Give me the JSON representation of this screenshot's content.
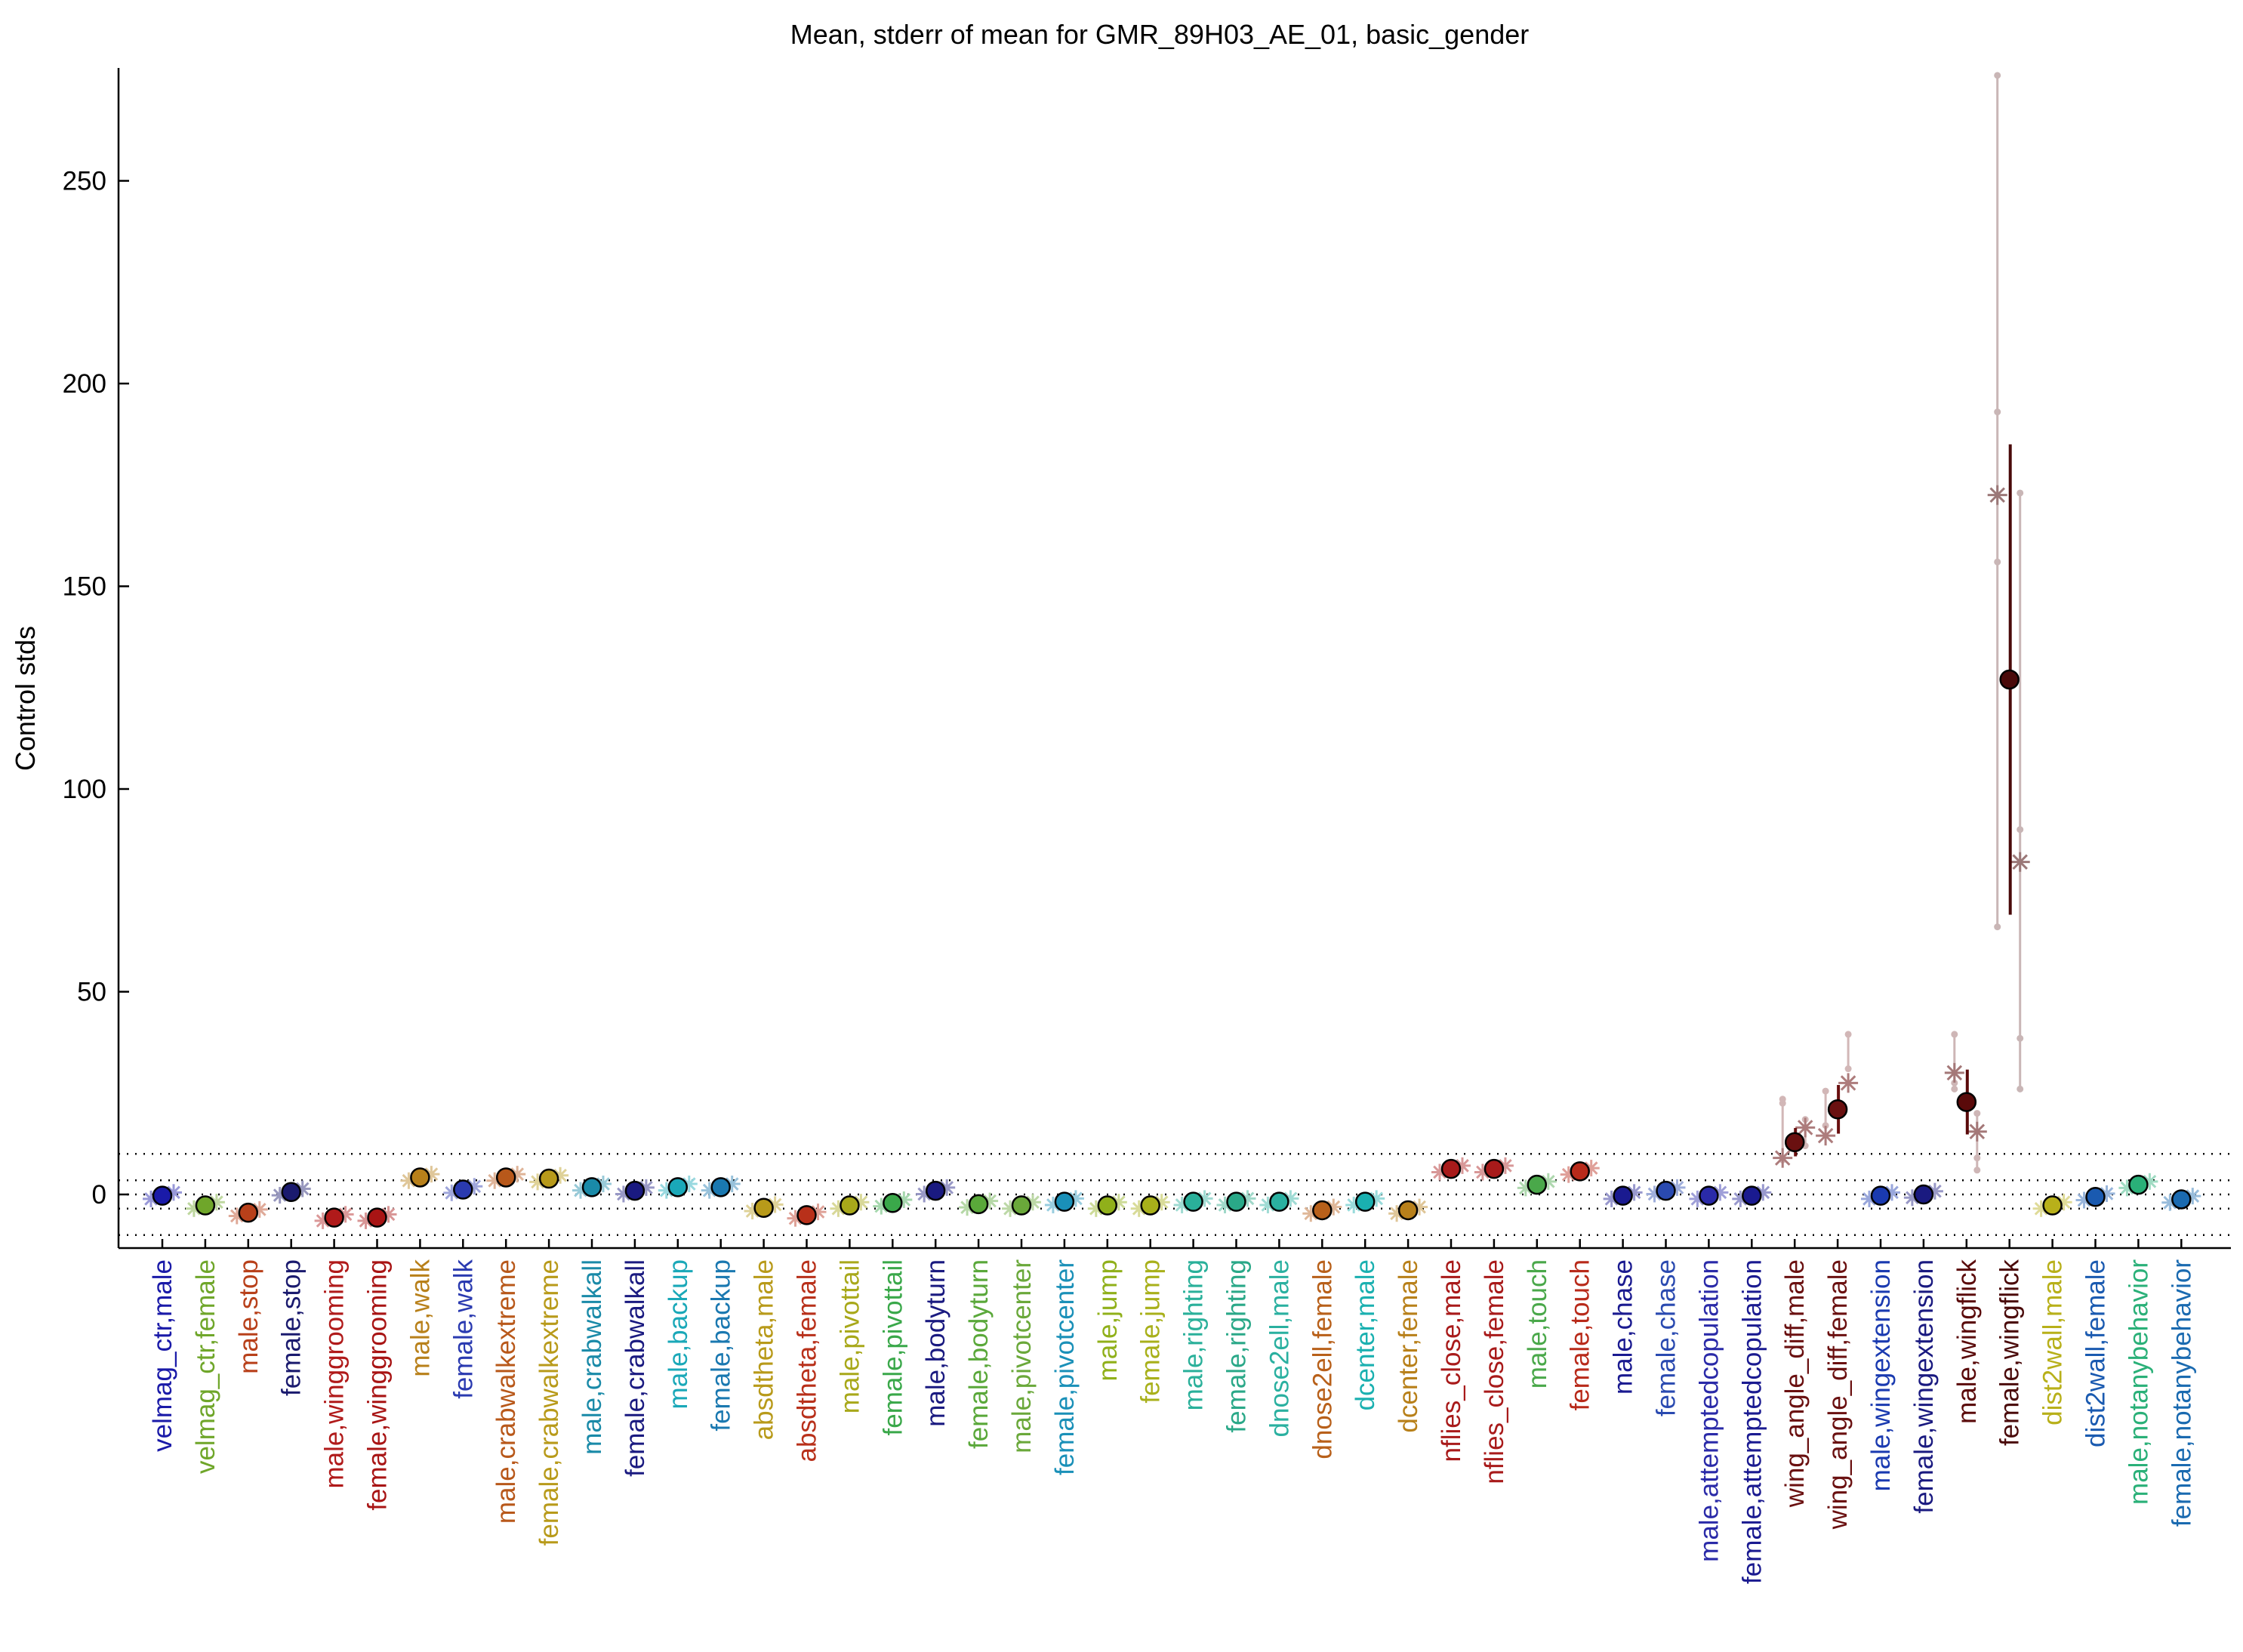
{
  "chart_data": {
    "type": "scatter",
    "title": "Mean, stderr of mean for GMR_89H03_AE_01, basic_gender",
    "ylabel": "Control stds",
    "xlabel": "",
    "ylim": [
      -12,
      278
    ],
    "yticks": [
      0,
      50,
      100,
      150,
      200,
      250
    ],
    "reference_lines": [
      -10,
      -3.5,
      0,
      3.5,
      10
    ],
    "grid": false,
    "categories": [
      "velmag_ctr,male",
      "velmag_ctr,female",
      "male,stop",
      "female,stop",
      "male,winggrooming",
      "female,winggrooming",
      "male,walk",
      "female,walk",
      "male,crabwalkextreme",
      "female,crabwalkextreme",
      "male,crabwalkall",
      "female,crabwalkall",
      "male,backup",
      "female,backup",
      "absdtheta,male",
      "absdtheta,female",
      "male,pivottail",
      "female,pivottail",
      "male,bodyturn",
      "female,bodyturn",
      "male,pivotcenter",
      "female,pivotcenter",
      "male,jump",
      "female,jump",
      "male,righting",
      "female,righting",
      "dnose2ell,male",
      "dnose2ell,female",
      "dcenter,male",
      "dcenter,female",
      "nflies_close,male",
      "nflies_close,female",
      "male,touch",
      "female,touch",
      "male,chase",
      "female,chase",
      "male,attemptedcopulation",
      "female,attemptedcopulation",
      "wing_angle_diff,male",
      "wing_angle_diff,female",
      "male,wingextension",
      "female,wingextension",
      "male,wingflick",
      "female,wingflick",
      "dist2wall,male",
      "dist2wall,female",
      "male,notanybehavior",
      "female,notanybehavior"
    ],
    "colors": [
      "#1a1aa8",
      "#6fa62a",
      "#b8401a",
      "#1a1a6e",
      "#b01a1a",
      "#a81414",
      "#b8801a",
      "#2a3ab0",
      "#b8581a",
      "#b89a1a",
      "#1a8aa8",
      "#1a1a80",
      "#1aa8b8",
      "#1a78b0",
      "#b89a1a",
      "#b8301a",
      "#a8a81a",
      "#3aa84a",
      "#1a1a80",
      "#5aa83a",
      "#6aa83a",
      "#1a90b8",
      "#90b01a",
      "#a8b01a",
      "#2ab09a",
      "#2aa888",
      "#2ab0a0",
      "#b8601a",
      "#1ab0b0",
      "#b8801a",
      "#a81a1a",
      "#a81a1a",
      "#4aa84a",
      "#b82a1a",
      "#1a1a90",
      "#2a4ab0",
      "#2a2aa8",
      "#1a1a90",
      "#6a1010",
      "#6a1010",
      "#1a3ab0",
      "#1a1a80",
      "#5a0a0a",
      "#4a0a0a",
      "#b8b01a",
      "#1a5ab0",
      "#2ab078",
      "#1a6ab0"
    ],
    "means": [
      -0.3,
      -2.7,
      -4.5,
      0.6,
      -5.7,
      -5.7,
      4.2,
      1.2,
      4.2,
      3.9,
      1.8,
      0.9,
      1.8,
      1.8,
      -3.3,
      -5.1,
      -2.7,
      -2.1,
      0.9,
      -2.4,
      -2.7,
      -1.8,
      -2.7,
      -2.7,
      -1.8,
      -1.8,
      -1.8,
      -3.9,
      -1.8,
      -3.9,
      6.3,
      6.3,
      2.4,
      5.7,
      -0.3,
      0.9,
      -0.3,
      -0.3,
      12.9,
      21.0,
      -0.3,
      0.0,
      22.8,
      127.0,
      -2.7,
      -0.6,
      2.4,
      -1.2
    ],
    "stderr": [
      0,
      0,
      0,
      0,
      0,
      0,
      0,
      0,
      0,
      0,
      0,
      0,
      0,
      0,
      0,
      0,
      0,
      0,
      0,
      0,
      0,
      0,
      0,
      0,
      0,
      0,
      0,
      0,
      0,
      0,
      0,
      0,
      0,
      0,
      0,
      0,
      0,
      0,
      3.5,
      6.0,
      0,
      0,
      8.0,
      58.0,
      0,
      0,
      0,
      0
    ],
    "individual_lines": [
      {
        "index": 38,
        "values": [
          9.0,
          16.5
        ],
        "points": [
          8.5,
          22.5,
          23.5,
          18.5,
          12.0
        ]
      },
      {
        "index": 39,
        "values": [
          14.5,
          27.5
        ],
        "points": [
          17.0,
          25.5,
          39.5,
          31.0
        ]
      },
      {
        "index": 42,
        "values": [
          30.0,
          15.5
        ],
        "points": [
          39.5,
          26.0,
          27.5,
          20.0,
          6.0,
          9.0
        ]
      },
      {
        "index": 43,
        "values": [
          172.5,
          82.0
        ],
        "points": [
          66.0,
          156.0,
          193.0,
          276.0,
          26.0,
          38.5,
          90.0,
          173.0
        ]
      }
    ]
  }
}
